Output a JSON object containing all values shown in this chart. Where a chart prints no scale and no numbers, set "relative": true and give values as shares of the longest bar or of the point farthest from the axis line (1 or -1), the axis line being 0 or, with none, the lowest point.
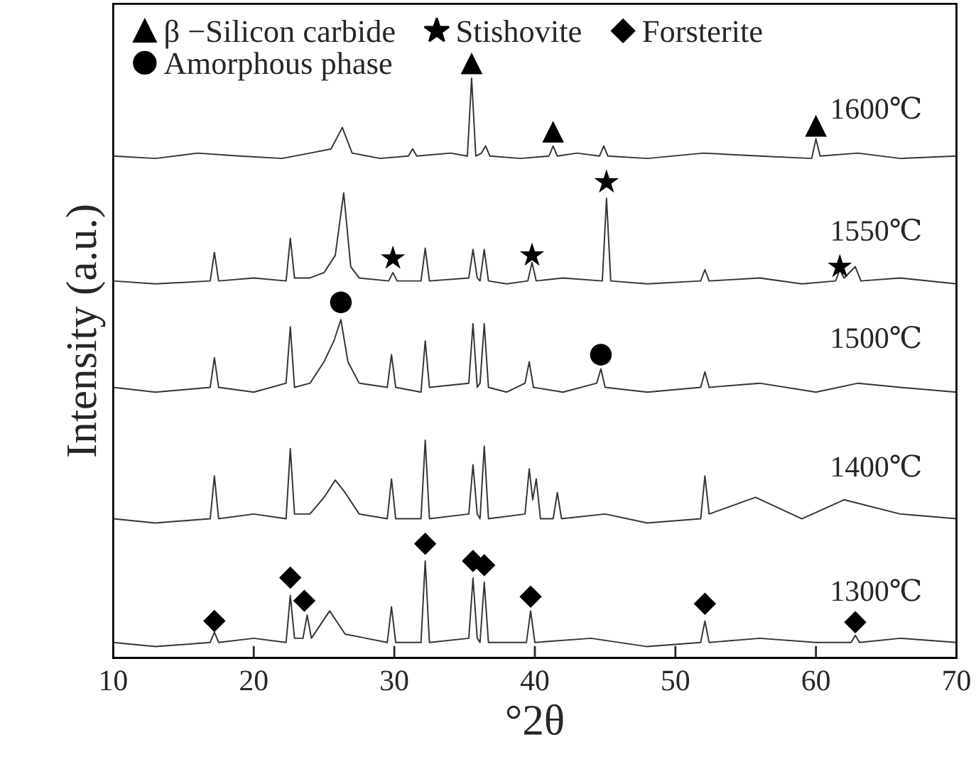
{
  "chart_data": {
    "type": "line",
    "relative": true,
    "xlabel": "°2θ",
    "ylabel": "Intensity (a.u.)",
    "xlim": [
      10,
      70
    ],
    "xticks": [
      10,
      20,
      30,
      40,
      50,
      60,
      70
    ],
    "grid": false,
    "legend": "top left",
    "tick_labels": "x",
    "series": [
      {
        "color": "#333333",
        "x": [
          10,
          13,
          16,
          19,
          22,
          24,
          25.5,
          26.3,
          27,
          29,
          31.0,
          31.3,
          31.6,
          34,
          35.2,
          35.5,
          35.8,
          36.2,
          36.5,
          36.8,
          39,
          41.0,
          41.3,
          41.6,
          43,
          44.6,
          44.9,
          45.2,
          48,
          52,
          56,
          59.7,
          60.0,
          60.3,
          63,
          66,
          70
        ],
        "values": [
          0.844,
          0.84,
          0.849,
          0.844,
          0.84,
          0.849,
          0.856,
          0.892,
          0.849,
          0.84,
          0.844,
          0.856,
          0.844,
          0.849,
          0.844,
          0.975,
          0.844,
          0.849,
          0.861,
          0.844,
          0.84,
          0.844,
          0.861,
          0.844,
          0.849,
          0.844,
          0.861,
          0.844,
          0.84,
          0.849,
          0.844,
          0.84,
          0.873,
          0.844,
          0.849,
          0.84,
          0.844
        ]
      },
      {
        "color": "#333333",
        "x": [
          10,
          13,
          16.9,
          17.2,
          17.5,
          20,
          22.3,
          22.6,
          22.9,
          24,
          25,
          25.8,
          26.4,
          26.9,
          27.5,
          29.6,
          29.9,
          30.2,
          31.9,
          32.2,
          32.5,
          35.3,
          35.6,
          35.9,
          36.1,
          36.4,
          36.7,
          38,
          39.5,
          39.8,
          40.1,
          42,
          44.8,
          45.1,
          45.4,
          48,
          51.8,
          52.1,
          52.4,
          56,
          59,
          61.4,
          61.7,
          62.0,
          62.8,
          63.2,
          66,
          70
        ],
        "values": [
          0.634,
          0.629,
          0.634,
          0.682,
          0.634,
          0.639,
          0.634,
          0.706,
          0.639,
          0.639,
          0.648,
          0.677,
          0.782,
          0.658,
          0.639,
          0.634,
          0.648,
          0.634,
          0.634,
          0.689,
          0.634,
          0.639,
          0.687,
          0.639,
          0.634,
          0.687,
          0.634,
          0.629,
          0.634,
          0.665,
          0.634,
          0.639,
          0.634,
          0.773,
          0.634,
          0.629,
          0.634,
          0.653,
          0.634,
          0.639,
          0.629,
          0.634,
          0.653,
          0.639,
          0.658,
          0.634,
          0.639,
          0.629
        ]
      },
      {
        "color": "#333333",
        "x": [
          10,
          13,
          16.9,
          17.2,
          17.5,
          20,
          22.3,
          22.6,
          22.9,
          24,
          25,
          25.7,
          26.2,
          26.7,
          27.5,
          29.5,
          29.8,
          30.1,
          31.9,
          32.2,
          32.5,
          35.3,
          35.6,
          35.9,
          36.1,
          36.4,
          36.7,
          38,
          39.3,
          39.6,
          39.9,
          42,
          44.4,
          44.7,
          45.0,
          48,
          51.8,
          52.1,
          52.4,
          56,
          60,
          63,
          66,
          70
        ],
        "values": [
          0.455,
          0.447,
          0.455,
          0.505,
          0.455,
          0.447,
          0.462,
          0.557,
          0.455,
          0.462,
          0.498,
          0.533,
          0.569,
          0.498,
          0.462,
          0.455,
          0.51,
          0.455,
          0.447,
          0.533,
          0.455,
          0.462,
          0.562,
          0.455,
          0.462,
          0.562,
          0.455,
          0.447,
          0.462,
          0.498,
          0.455,
          0.447,
          0.462,
          0.486,
          0.455,
          0.447,
          0.455,
          0.481,
          0.455,
          0.462,
          0.447,
          0.462,
          0.455,
          0.447
        ]
      },
      {
        "color": "#333333",
        "x": [
          10,
          13,
          16.9,
          17.2,
          17.5,
          20,
          22.3,
          22.6,
          22.9,
          24,
          25,
          25.8,
          26.5,
          27.5,
          29.5,
          29.8,
          30.1,
          31.9,
          32.2,
          32.5,
          35.3,
          35.6,
          35.9,
          36.1,
          36.4,
          36.7,
          39.3,
          39.6,
          39.85,
          40.1,
          40.4,
          41.3,
          41.6,
          41.9,
          45,
          48,
          51.8,
          52.1,
          52.4,
          55.7,
          59,
          62,
          66,
          70
        ],
        "values": [
          0.234,
          0.227,
          0.234,
          0.306,
          0.234,
          0.242,
          0.234,
          0.352,
          0.242,
          0.242,
          0.27,
          0.299,
          0.278,
          0.242,
          0.234,
          0.301,
          0.234,
          0.234,
          0.366,
          0.234,
          0.242,
          0.325,
          0.242,
          0.234,
          0.356,
          0.234,
          0.242,
          0.318,
          0.266,
          0.301,
          0.234,
          0.234,
          0.278,
          0.234,
          0.242,
          0.227,
          0.234,
          0.306,
          0.242,
          0.27,
          0.234,
          0.266,
          0.242,
          0.234
        ]
      },
      {
        "color": "#333333",
        "x": [
          10,
          13,
          16.9,
          17.2,
          17.5,
          20,
          22.3,
          22.6,
          22.9,
          23.5,
          23.8,
          24.1,
          25.4,
          26.5,
          29.5,
          29.8,
          30.1,
          31.9,
          32.2,
          32.5,
          35.3,
          35.6,
          35.9,
          36.1,
          36.4,
          36.7,
          39.4,
          39.7,
          40.0,
          44,
          48,
          51.8,
          52.1,
          52.4,
          56,
          60,
          62.5,
          62.8,
          63.1,
          66,
          70
        ],
        "values": [
          0.026,
          0.019,
          0.026,
          0.043,
          0.026,
          0.033,
          0.026,
          0.105,
          0.033,
          0.033,
          0.072,
          0.033,
          0.079,
          0.04,
          0.026,
          0.086,
          0.026,
          0.026,
          0.163,
          0.026,
          0.033,
          0.134,
          0.033,
          0.026,
          0.127,
          0.026,
          0.026,
          0.079,
          0.026,
          0.033,
          0.019,
          0.026,
          0.062,
          0.026,
          0.033,
          0.026,
          0.026,
          0.038,
          0.026,
          0.033,
          0.026
        ]
      },
      {
        "type": "scatter",
        "name": "β −Silicon carbide",
        "color": "#000000",
        "marker": "triangle",
        "x": [
          35.5,
          41.3,
          60.0
        ],
        "values": [
          1.0,
          0.885,
          0.895
        ]
      },
      {
        "type": "scatter",
        "name": "Amorphous phase",
        "color": "#000000",
        "marker": "circle",
        "x": [
          26.2,
          44.7
        ],
        "values": [
          0.598,
          0.51
        ]
      },
      {
        "type": "scatter",
        "name": "Stishovite",
        "color": "#000000",
        "marker": "star",
        "x": [
          29.9,
          39.8,
          45.1,
          61.7
        ],
        "values": [
          0.672,
          0.677,
          0.8,
          0.658
        ]
      },
      {
        "type": "scatter",
        "name": "Forsterite",
        "color": "#000000",
        "marker": "diamond",
        "x": [
          17.2,
          22.6,
          23.6,
          32.2,
          35.6,
          36.4,
          39.7,
          52.1,
          62.8
        ],
        "values": [
          0.062,
          0.135,
          0.096,
          0.192,
          0.163,
          0.156,
          0.103,
          0.091,
          0.06
        ]
      }
    ],
    "annotations": [
      "1600℃",
      "1550℃",
      "1500℃",
      "1400℃",
      "1300℃"
    ]
  }
}
